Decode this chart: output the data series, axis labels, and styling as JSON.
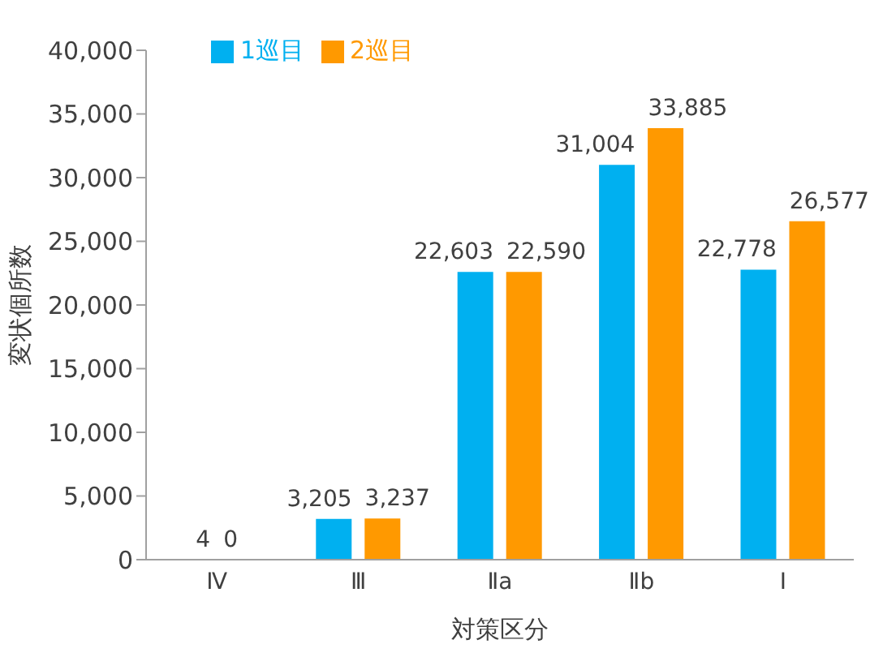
{
  "chart_data": {
    "type": "bar",
    "xlabel": "対策区分",
    "ylabel": "変状個所数",
    "categories": [
      "Ⅳ",
      "Ⅲ",
      "Ⅱa",
      "Ⅱb",
      "Ⅰ"
    ],
    "series": [
      {
        "name": "1巡目",
        "color": "#00b0f0",
        "values": [
          4,
          3205,
          22603,
          31004,
          22778
        ],
        "value_labels": [
          "4",
          "3,205",
          "22,603",
          "31,004",
          "22,778"
        ]
      },
      {
        "name": "2巡目",
        "color": "#ff9900",
        "values": [
          0,
          3237,
          22590,
          33885,
          26577
        ],
        "value_labels": [
          "0",
          "3,237",
          "22,590",
          "33,885",
          "26,577"
        ]
      }
    ],
    "ylim": [
      0,
      40000
    ],
    "yticks": [
      0,
      {
        "value": 5000,
        "label": "5,000"
      },
      {
        "value": 10000,
        "label": "10,000"
      },
      {
        "value": 15000,
        "label": "15,000"
      },
      {
        "value": 20000,
        "label": "20,000"
      },
      {
        "value": 25000,
        "label": "25,000"
      },
      {
        "value": 30000,
        "label": "30,000"
      },
      {
        "value": 35000,
        "label": "35,000"
      },
      {
        "value": 40000,
        "label": "40,000"
      }
    ],
    "grid": false,
    "legend": "top left"
  }
}
